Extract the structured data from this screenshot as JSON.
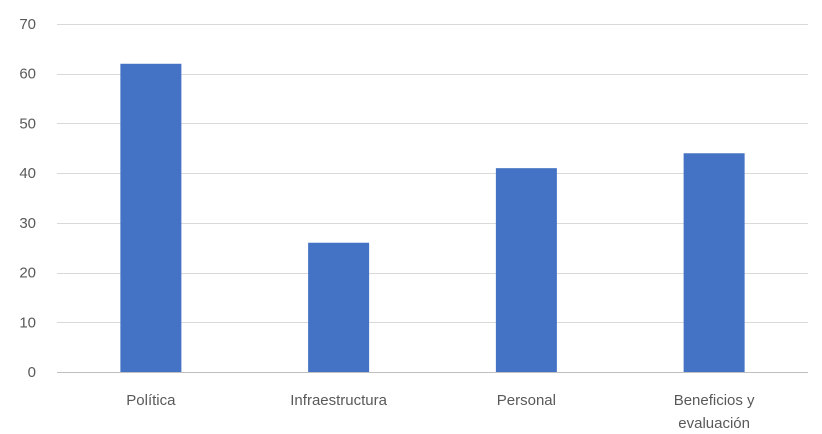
{
  "chart_data": {
    "type": "bar",
    "categories": [
      "Política",
      "Infraestructura",
      "Personal",
      "Beneficios y evaluación"
    ],
    "category_lines": [
      [
        "Política"
      ],
      [
        "Infraestructura"
      ],
      [
        "Personal"
      ],
      [
        "Beneficios y",
        "evaluación"
      ]
    ],
    "values": [
      62,
      26,
      41,
      44
    ],
    "title": "",
    "xlabel": "",
    "ylabel": "",
    "ylim": [
      0,
      70
    ],
    "yticks": [
      0,
      10,
      20,
      30,
      40,
      50,
      60,
      70
    ],
    "grid": true,
    "legend": "none",
    "bar_color": "#4472C4",
    "grid_color": "#D9D9D9",
    "text_color": "#595959"
  }
}
